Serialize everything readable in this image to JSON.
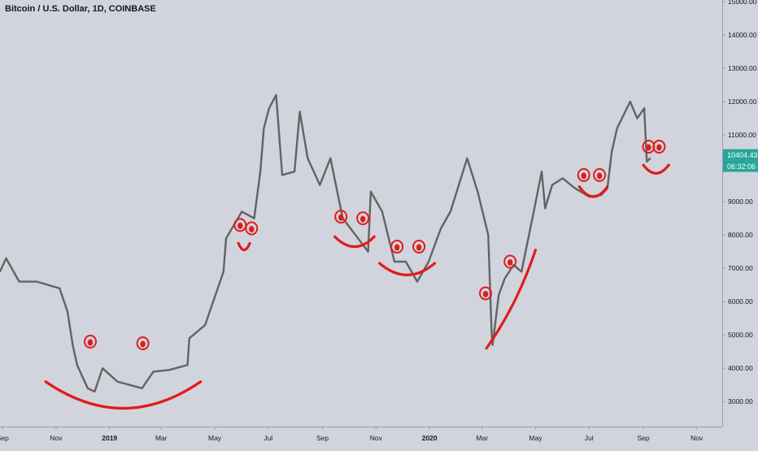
{
  "chart_data": {
    "type": "line",
    "title": "Bitcoin / U.S. Dollar, 1D, COINBASE",
    "xlabel": "",
    "ylabel": "",
    "x_type": "date",
    "xlim": [
      "2018-08-29",
      "2020-11-30"
    ],
    "ylim": [
      2250,
      15050
    ],
    "y_ticks": [
      3000,
      4000,
      5000,
      6000,
      7000,
      8000,
      9000,
      10000,
      11000,
      12000,
      13000,
      14000,
      15000
    ],
    "y_tick_labels": [
      "3000.00",
      "4000.00",
      "5000.00",
      "6000.00",
      "7000.00",
      "8000.00",
      "9000.00",
      "10000.00",
      "11000.00",
      "12000.00",
      "13000.00",
      "14000.00",
      "15000.00"
    ],
    "x_ticks": [
      {
        "date": "2018-09-01",
        "label": "Sep"
      },
      {
        "date": "2018-11-01",
        "label": "Nov"
      },
      {
        "date": "2019-01-01",
        "label": "2019"
      },
      {
        "date": "2019-03-01",
        "label": "Mar"
      },
      {
        "date": "2019-05-01",
        "label": "May"
      },
      {
        "date": "2019-07-01",
        "label": "Jul"
      },
      {
        "date": "2019-09-01",
        "label": "Sep"
      },
      {
        "date": "2019-11-01",
        "label": "Nov"
      },
      {
        "date": "2020-01-01",
        "label": "2020"
      },
      {
        "date": "2020-03-01",
        "label": "Mar"
      },
      {
        "date": "2020-05-01",
        "label": "May"
      },
      {
        "date": "2020-07-01",
        "label": "Jul"
      },
      {
        "date": "2020-09-01",
        "label": "Sep"
      },
      {
        "date": "2020-11-01",
        "label": "Nov"
      }
    ],
    "series": [
      {
        "color": "#636363",
        "x": [
          "2018-08-29",
          "2018-09-05",
          "2018-09-20",
          "2018-10-10",
          "2018-11-05",
          "2018-11-14",
          "2018-11-20",
          "2018-11-25",
          "2018-12-07",
          "2018-12-15",
          "2018-12-24",
          "2019-01-10",
          "2019-02-07",
          "2019-02-20",
          "2019-03-10",
          "2019-03-31",
          "2019-04-02",
          "2019-04-20",
          "2019-05-11",
          "2019-05-14",
          "2019-06-01",
          "2019-06-15",
          "2019-06-22",
          "2019-06-26",
          "2019-07-02",
          "2019-07-10",
          "2019-07-17",
          "2019-07-31",
          "2019-08-06",
          "2019-08-15",
          "2019-08-29",
          "2019-09-10",
          "2019-09-24",
          "2019-09-30",
          "2019-10-23",
          "2019-10-26",
          "2019-11-08",
          "2019-11-22",
          "2019-12-05",
          "2019-12-18",
          "2019-12-31",
          "2020-01-14",
          "2020-01-25",
          "2020-02-13",
          "2020-02-25",
          "2020-03-08",
          "2020-03-12",
          "2020-03-13",
          "2020-03-20",
          "2020-03-27",
          "2020-04-06",
          "2020-04-15",
          "2020-04-29",
          "2020-05-08",
          "2020-05-12",
          "2020-05-20",
          "2020-06-01",
          "2020-06-15",
          "2020-07-01",
          "2020-07-15",
          "2020-07-22",
          "2020-07-27",
          "2020-08-02",
          "2020-08-17",
          "2020-08-25",
          "2020-09-02",
          "2020-09-05",
          "2020-09-09"
        ],
        "values": [
          6900,
          7300,
          6600,
          6600,
          6400,
          5700,
          4700,
          4100,
          3400,
          3300,
          4000,
          3600,
          3400,
          3900,
          3950,
          4100,
          4900,
          5300,
          6900,
          7900,
          8700,
          8500,
          9900,
          11200,
          11800,
          12200,
          9800,
          9900,
          11700,
          10300,
          9500,
          10300,
          8500,
          8300,
          7500,
          9300,
          8700,
          7200,
          7200,
          6600,
          7200,
          8200,
          8700,
          10300,
          9300,
          8000,
          5000,
          4700,
          6200,
          6700,
          7100,
          6900,
          8700,
          9900,
          8800,
          9500,
          9700,
          9400,
          9150,
          9200,
          9400,
          10500,
          11200,
          12000,
          11500,
          11800,
          10200,
          10300
        ]
      }
    ],
    "last_price": {
      "value": 10404.43,
      "label": "10404.43",
      "countdown": "06:32:06",
      "color": "#26a69a"
    },
    "annotations": [
      {
        "shape": "smile-arc",
        "color": "#e01c1c",
        "x_from": "2018-10-20",
        "x_to": "2019-04-15",
        "y_edge": 3600,
        "y_bottom": 2800
      },
      {
        "shape": "eye",
        "color": "#e01c1c",
        "x": "2018-12-10",
        "y": 4800
      },
      {
        "shape": "eye",
        "color": "#e01c1c",
        "x": "2019-02-08",
        "y": 4750
      },
      {
        "shape": "smile-arc",
        "color": "#e01c1c",
        "x_from": "2019-05-28",
        "x_to": "2019-06-10",
        "y_edge": 7750,
        "y_bottom": 7550
      },
      {
        "shape": "eye",
        "color": "#e01c1c",
        "x": "2019-05-30",
        "y": 8300
      },
      {
        "shape": "eye",
        "color": "#e01c1c",
        "x": "2019-06-12",
        "y": 8200
      },
      {
        "shape": "smile-arc",
        "color": "#e01c1c",
        "x_from": "2019-09-15",
        "x_to": "2019-10-30",
        "y_edge": 7950,
        "y_bottom": 7650
      },
      {
        "shape": "eye",
        "color": "#e01c1c",
        "x": "2019-09-22",
        "y": 8550
      },
      {
        "shape": "eye",
        "color": "#e01c1c",
        "x": "2019-10-17",
        "y": 8500
      },
      {
        "shape": "smile-arc",
        "color": "#e01c1c",
        "x_from": "2019-11-05",
        "x_to": "2020-01-07",
        "y_edge": 7150,
        "y_bottom": 6800
      },
      {
        "shape": "eye",
        "color": "#e01c1c",
        "x": "2019-11-25",
        "y": 7650
      },
      {
        "shape": "eye",
        "color": "#e01c1c",
        "x": "2019-12-20",
        "y": 7650
      },
      {
        "shape": "smile-arc",
        "color": "#e01c1c",
        "x_from": "2020-06-20",
        "x_to": "2020-07-22",
        "y_edge": 9450,
        "y_bottom": 9150
      },
      {
        "shape": "eye",
        "color": "#e01c1c",
        "x": "2020-06-25",
        "y": 9800
      },
      {
        "shape": "eye",
        "color": "#e01c1c",
        "x": "2020-07-13",
        "y": 9800
      },
      {
        "shape": "smile-arc",
        "color": "#e01c1c",
        "x_from": "2020-09-01",
        "x_to": "2020-09-30",
        "y_edge": 10100,
        "y_bottom": 9850
      },
      {
        "shape": "eye",
        "color": "#e01c1c",
        "x": "2020-09-07",
        "y": 10650
      },
      {
        "shape": "eye",
        "color": "#e01c1c",
        "x": "2020-09-19",
        "y": 10650
      },
      {
        "shape": "eye",
        "color": "#e01c1c",
        "x": "2020-03-05",
        "y": 6250
      },
      {
        "shape": "eye",
        "color": "#e01c1c",
        "x": "2020-04-02",
        "y": 7200
      },
      {
        "shape": "rising-arc",
        "color": "#e01c1c",
        "points": [
          [
            "2020-03-06",
            4600
          ],
          [
            "2020-04-10",
            5900
          ],
          [
            "2020-05-01",
            7550
          ]
        ]
      }
    ]
  }
}
